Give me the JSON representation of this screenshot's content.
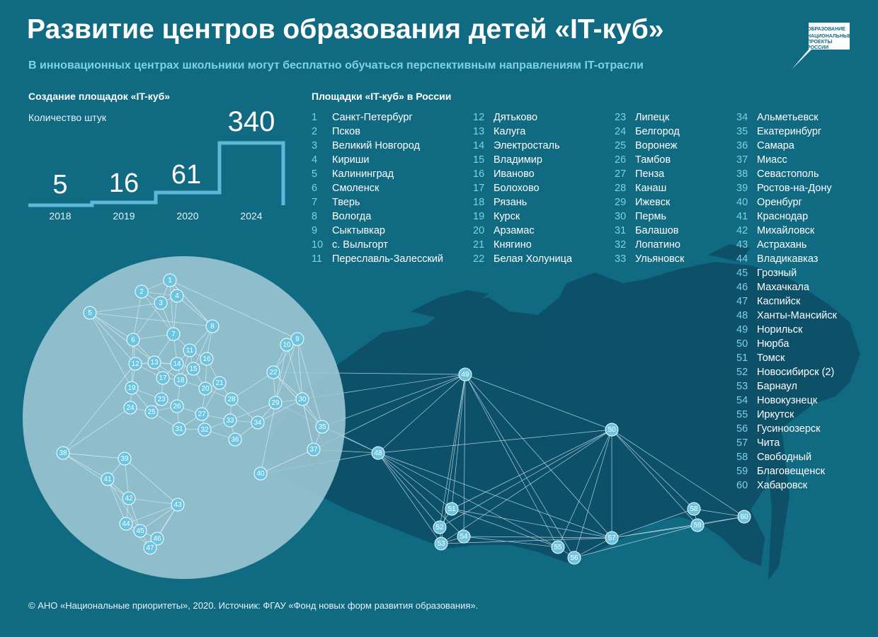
{
  "header": {
    "title": "Развитие центров образования детей «IT-куб»",
    "subtitle": "В инновационных центрах школьники могут бесплатно обучаться перспективным направлениям IT-отрасли"
  },
  "logo": {
    "line1": "ОБРАЗОВАНИЕ",
    "line2": "НАЦИОНАЛЬНЫЕ ПРОЕКТЫ РОССИИ"
  },
  "growth": {
    "title": "Создание площадок «IT-куб»",
    "unit_label": "Количество штук",
    "years": [
      "2018",
      "2019",
      "2020",
      "2024"
    ],
    "values": [
      "5",
      "16",
      "61",
      "340"
    ]
  },
  "sites": {
    "title": "Площадки «IT-куб» в России",
    "col1": [
      {
        "n": "1",
        "name": "Санкт-Петербург"
      },
      {
        "n": "2",
        "name": "Псков"
      },
      {
        "n": "3",
        "name": "Великий Новгород"
      },
      {
        "n": "4",
        "name": "Кириши"
      },
      {
        "n": "5",
        "name": "Калининград"
      },
      {
        "n": "6",
        "name": "Смоленск"
      },
      {
        "n": "7",
        "name": "Тверь"
      },
      {
        "n": "8",
        "name": "Вологда"
      },
      {
        "n": "9",
        "name": "Сыктывкар"
      },
      {
        "n": "10",
        "name": "с. Выльгорт"
      },
      {
        "n": "11",
        "name": "Переславль-Залесский"
      }
    ],
    "col2": [
      {
        "n": "12",
        "name": "Дятьково"
      },
      {
        "n": "13",
        "name": "Калуга"
      },
      {
        "n": "14",
        "name": "Электросталь"
      },
      {
        "n": "15",
        "name": "Владимир"
      },
      {
        "n": "16",
        "name": "Иваново"
      },
      {
        "n": "17",
        "name": "Болохово"
      },
      {
        "n": "18",
        "name": "Рязань"
      },
      {
        "n": "19",
        "name": "Курск"
      },
      {
        "n": "20",
        "name": "Арзамас"
      },
      {
        "n": "21",
        "name": "Княгино"
      },
      {
        "n": "22",
        "name": "Белая Холуница"
      }
    ],
    "col3": [
      {
        "n": "23",
        "name": "Липецк"
      },
      {
        "n": "24",
        "name": "Белгород"
      },
      {
        "n": "25",
        "name": "Воронеж"
      },
      {
        "n": "26",
        "name": "Тамбов"
      },
      {
        "n": "27",
        "name": "Пенза"
      },
      {
        "n": "28",
        "name": "Канаш"
      },
      {
        "n": "29",
        "name": "Ижевск"
      },
      {
        "n": "30",
        "name": "Пермь"
      },
      {
        "n": "31",
        "name": "Балашов"
      },
      {
        "n": "32",
        "name": "Лопатино"
      },
      {
        "n": "33",
        "name": "Ульяновск"
      }
    ],
    "col4": [
      {
        "n": "34",
        "name": "Альметьевск"
      },
      {
        "n": "35",
        "name": "Екатеринбург"
      },
      {
        "n": "36",
        "name": "Самара"
      },
      {
        "n": "37",
        "name": "Миасс"
      },
      {
        "n": "38",
        "name": "Севастополь"
      },
      {
        "n": "39",
        "name": "Ростов-на-Дону"
      },
      {
        "n": "40",
        "name": "Оренбург"
      },
      {
        "n": "41",
        "name": "Краснодар"
      },
      {
        "n": "42",
        "name": "Михайловск"
      },
      {
        "n": "43",
        "name": "Астрахань"
      },
      {
        "n": "44",
        "name": "Владикавказ"
      },
      {
        "n": "45",
        "name": "Грозный"
      },
      {
        "n": "46",
        "name": "Махачкала"
      },
      {
        "n": "47",
        "name": "Каспийск"
      },
      {
        "n": "48",
        "name": "Ханты-Мансийск"
      },
      {
        "n": "49",
        "name": "Норильск"
      },
      {
        "n": "50",
        "name": "Нюрба"
      },
      {
        "n": "51",
        "name": "Томск"
      },
      {
        "n": "52",
        "name": "Новосибирск (2)"
      },
      {
        "n": "53",
        "name": "Барнаул"
      },
      {
        "n": "54",
        "name": "Новокузнецк"
      },
      {
        "n": "55",
        "name": "Иркутск"
      },
      {
        "n": "56",
        "name": "Гусиноозерск"
      },
      {
        "n": "57",
        "name": "Чита"
      },
      {
        "n": "58",
        "name": "Свободный"
      },
      {
        "n": "59",
        "name": "Благовещенск"
      },
      {
        "n": "60",
        "name": "Хабаровск"
      }
    ]
  },
  "map": {
    "node_labels": [
      "1",
      "2",
      "3",
      "4",
      "5",
      "6",
      "7",
      "8",
      "9",
      "10",
      "11",
      "12",
      "13",
      "14",
      "15",
      "16",
      "17",
      "18",
      "19",
      "20",
      "21",
      "22",
      "23",
      "24",
      "25",
      "26",
      "27",
      "28",
      "29",
      "30",
      "31",
      "32",
      "33",
      "34",
      "35",
      "36",
      "37",
      "38",
      "39",
      "40",
      "41",
      "42",
      "43",
      "44",
      "45",
      "46",
      "47",
      "48",
      "49",
      "50",
      "51",
      "52",
      "53",
      "54",
      "55",
      "56",
      "57",
      "58",
      "59",
      "60"
    ]
  },
  "footer": {
    "text": "© АНО «Национальные приоритеты», 2020. Источник: ФГАУ «Фонд новых форм развития образования»."
  },
  "colors": {
    "background": "#106a82",
    "land": "#0d4f67",
    "accent": "#7fd0ea",
    "bars": "#5cb8d8",
    "node": "#6cc4e0",
    "circle": "#9fc9d6"
  }
}
